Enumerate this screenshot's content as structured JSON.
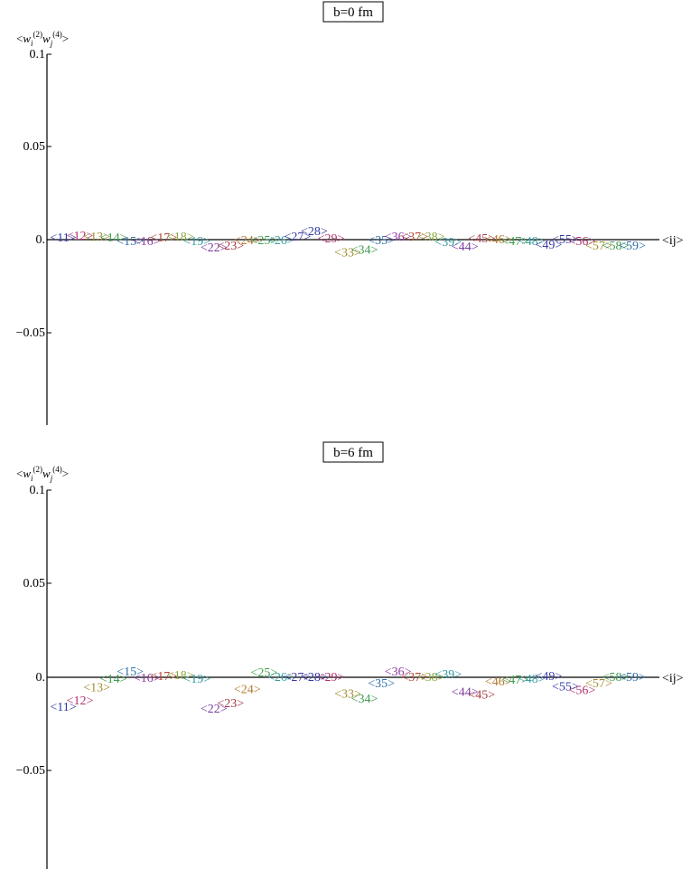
{
  "chart_data": [
    {
      "type": "scatter",
      "title": "b=0 fm",
      "ylabel": "<w_i^(2) w_j^(4)>",
      "xlabel": "<ij>",
      "ylim": [
        -0.1,
        0.1
      ],
      "yticks": [
        "0.1",
        "0.05",
        "0.",
        "−0.05"
      ],
      "points": [
        {
          "label": "<11>",
          "value": 0.0015
        },
        {
          "label": "<12>",
          "value": 0.0025
        },
        {
          "label": "<13>",
          "value": 0.002
        },
        {
          "label": "<14>",
          "value": 0.0015
        },
        {
          "label": "<15>",
          "value": -0.0005
        },
        {
          "label": "<16>",
          "value": -0.0005
        },
        {
          "label": "<17>",
          "value": 0.0015
        },
        {
          "label": "<18>",
          "value": 0.002
        },
        {
          "label": "<19>",
          "value": -0.0005
        },
        {
          "label": "<22>",
          "value": -0.004
        },
        {
          "label": "<23>",
          "value": -0.003
        },
        {
          "label": "<24>",
          "value": 0.0
        },
        {
          "label": "<25>",
          "value": 0.0
        },
        {
          "label": "<26>",
          "value": 0.0
        },
        {
          "label": "<27>",
          "value": 0.002
        },
        {
          "label": "<28>",
          "value": 0.005
        },
        {
          "label": "<29>",
          "value": 0.001
        },
        {
          "label": "<33>",
          "value": -0.0065
        },
        {
          "label": "<34>",
          "value": -0.005
        },
        {
          "label": "<35>",
          "value": 0.0
        },
        {
          "label": "<36>",
          "value": 0.002
        },
        {
          "label": "<37>",
          "value": 0.002
        },
        {
          "label": "<38>",
          "value": 0.002
        },
        {
          "label": "<39>",
          "value": -0.001
        },
        {
          "label": "<44>",
          "value": -0.0035
        },
        {
          "label": "<45>",
          "value": 0.001
        },
        {
          "label": "<46>",
          "value": 0.0005
        },
        {
          "label": "<47>",
          "value": -0.0005
        },
        {
          "label": "<48>",
          "value": -0.0005
        },
        {
          "label": "<49>",
          "value": -0.0025
        },
        {
          "label": "<55>",
          "value": 0.0005
        },
        {
          "label": "<56>",
          "value": -0.0005
        },
        {
          "label": "<57>",
          "value": -0.003
        },
        {
          "label": "<58>",
          "value": -0.003
        },
        {
          "label": "<59>",
          "value": -0.003
        }
      ]
    },
    {
      "type": "scatter",
      "title": "b=6 fm",
      "ylabel": "<w_i^(2) w_j^(4)>",
      "xlabel": "<ij>",
      "ylim": [
        -0.1,
        0.1
      ],
      "yticks": [
        "0.1",
        "0.05",
        "0.",
        "−0.05"
      ],
      "points": [
        {
          "label": "<11>",
          "value": -0.0155
        },
        {
          "label": "<12>",
          "value": -0.012
        },
        {
          "label": "<13>",
          "value": -0.005
        },
        {
          "label": "<14>",
          "value": -0.0005
        },
        {
          "label": "<15>",
          "value": 0.0035
        },
        {
          "label": "<16>",
          "value": 0.0
        },
        {
          "label": "<17>",
          "value": 0.001
        },
        {
          "label": "<18>",
          "value": 0.0015
        },
        {
          "label": "<19>",
          "value": -0.0005
        },
        {
          "label": "<22>",
          "value": -0.0165
        },
        {
          "label": "<23>",
          "value": -0.0135
        },
        {
          "label": "<24>",
          "value": -0.006
        },
        {
          "label": "<25>",
          "value": 0.003
        },
        {
          "label": "<26>",
          "value": 0.0005
        },
        {
          "label": "<27>",
          "value": 0.0005
        },
        {
          "label": "<28>",
          "value": 0.0005
        },
        {
          "label": "<29>",
          "value": 0.0005
        },
        {
          "label": "<33>",
          "value": -0.0085
        },
        {
          "label": "<34>",
          "value": -0.011
        },
        {
          "label": "<35>",
          "value": -0.003
        },
        {
          "label": "<36>",
          "value": 0.0035
        },
        {
          "label": "<37>",
          "value": 0.0005
        },
        {
          "label": "<38>",
          "value": 0.0005
        },
        {
          "label": "<39>",
          "value": 0.002
        },
        {
          "label": "<44>",
          "value": -0.0075
        },
        {
          "label": "<45>",
          "value": -0.009
        },
        {
          "label": "<46>",
          "value": -0.002
        },
        {
          "label": "<47>",
          "value": -0.001
        },
        {
          "label": "<48>",
          "value": -0.0005
        },
        {
          "label": "<49>",
          "value": 0.001
        },
        {
          "label": "<55>",
          "value": -0.0045
        },
        {
          "label": "<56>",
          "value": -0.0065
        },
        {
          "label": "<57>",
          "value": -0.003
        },
        {
          "label": "<58>",
          "value": 0.0005
        },
        {
          "label": "<59>",
          "value": 0.0005
        }
      ]
    }
  ],
  "colors": [
    "#2f3aa3",
    "#b0306e",
    "#a38d2c",
    "#3f9b4e",
    "#2c6fa8",
    "#8e3aa0",
    "#b5462f",
    "#8aa83a",
    "#2f9a9e",
    "#7a3aa0",
    "#a33a45",
    "#b07a2e",
    "#3fa04e",
    "#3aa0a0",
    "#3f3aa0"
  ]
}
